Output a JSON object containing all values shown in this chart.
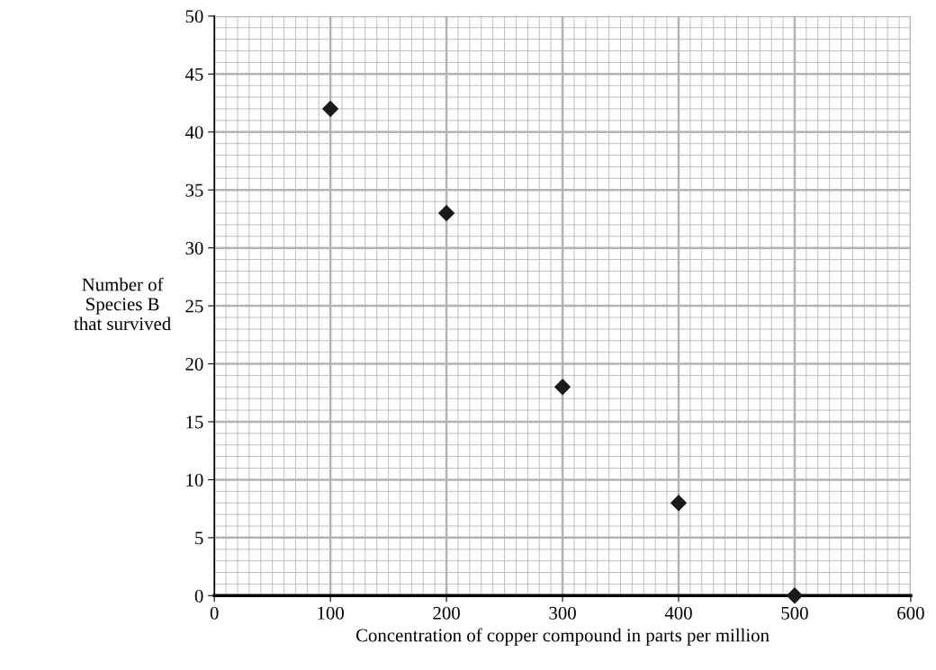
{
  "chart_data": {
    "type": "scatter",
    "xlabel": "Concentration of copper compound in parts per million",
    "ylabel": "Number of\nSpecies B\nthat survived",
    "x": [
      100,
      200,
      300,
      400,
      500
    ],
    "series": [
      {
        "color": "#1a1a1a",
        "values": [
          42,
          33,
          18,
          8,
          0
        ]
      }
    ],
    "marker": "diamond",
    "xlim": [
      0,
      600
    ],
    "xticks": [
      0,
      100,
      200,
      300,
      400,
      500,
      600
    ],
    "ylim": [
      0,
      50
    ],
    "yticks": [
      0,
      5,
      10,
      15,
      20,
      25,
      30,
      35,
      40,
      45,
      50
    ],
    "grid": true
  }
}
